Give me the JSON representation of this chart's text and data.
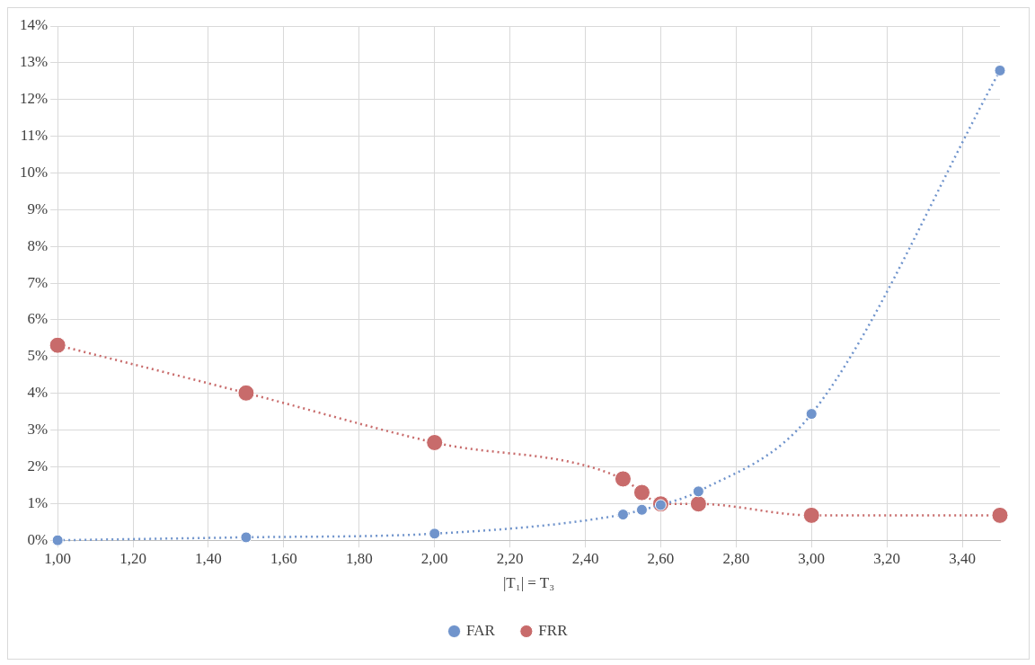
{
  "chart_data": {
    "type": "line",
    "xlabel": "|T₁| = T₃",
    "series": [
      {
        "name": "FAR",
        "color": "#7094cc",
        "x": [
          1,
          1.5,
          2,
          2.5,
          2.55,
          2.6,
          2.7,
          3,
          3.5
        ],
        "values": [
          0,
          0.08,
          0.18,
          0.7,
          0.83,
          0.96,
          1.33,
          3.44,
          12.79
        ]
      },
      {
        "name": "FRR",
        "color": "#c86b6b",
        "x": [
          1,
          1.5,
          2,
          2.5,
          2.55,
          2.6,
          2.7,
          3,
          3.5
        ],
        "values": [
          5.31,
          4.01,
          2.66,
          1.67,
          1.3,
          0.99,
          0.99,
          0.68,
          0.68
        ]
      }
    ],
    "xlim": [
      1,
      3.5
    ],
    "xticks": [
      {
        "value": 1,
        "label": "1,00"
      },
      {
        "value": 1.2,
        "label": "1,20"
      },
      {
        "value": 1.4,
        "label": "1,40"
      },
      {
        "value": 1.6,
        "label": "1,60"
      },
      {
        "value": 1.8,
        "label": "1,80"
      },
      {
        "value": 2,
        "label": "2,00"
      },
      {
        "value": 2.2,
        "label": "2,20"
      },
      {
        "value": 2.4,
        "label": "2,40"
      },
      {
        "value": 2.6,
        "label": "2,60"
      },
      {
        "value": 2.8,
        "label": "2,80"
      },
      {
        "value": 3,
        "label": "3,00"
      },
      {
        "value": 3.2,
        "label": "3,20"
      },
      {
        "value": 3.4,
        "label": "3,40"
      }
    ],
    "ylim": [
      0,
      14
    ],
    "yticks": [
      {
        "value": 0,
        "label": "0%"
      },
      {
        "value": 1,
        "label": "1%"
      },
      {
        "value": 2,
        "label": "2%"
      },
      {
        "value": 3,
        "label": "3%"
      },
      {
        "value": 4,
        "label": "4%"
      },
      {
        "value": 5,
        "label": "5%"
      },
      {
        "value": 6,
        "label": "6%"
      },
      {
        "value": 7,
        "label": "7%"
      },
      {
        "value": 8,
        "label": "8%"
      },
      {
        "value": 9,
        "label": "9%"
      },
      {
        "value": 10,
        "label": "10%"
      },
      {
        "value": 11,
        "label": "11%"
      },
      {
        "value": 12,
        "label": "12%"
      },
      {
        "value": 13,
        "label": "13%"
      },
      {
        "value": 14,
        "label": "14%"
      }
    ],
    "grid": true,
    "legend": "bottom",
    "marker": "circle",
    "line_style": "dotted"
  }
}
